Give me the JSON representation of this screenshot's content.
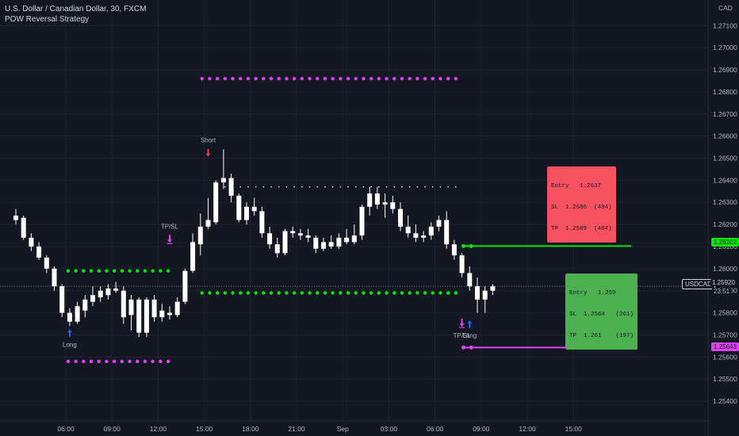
{
  "header": {
    "symbol_line": "U.S. Dollar / Canadian Dollar, 30, FXCM",
    "indicator": "POW Reversal Strategy"
  },
  "chart_data": {
    "type": "candlestick",
    "currency_label": "CAD",
    "ylim": [
      1.2535,
      1.2718
    ],
    "y_ticks": [
      "1.27100",
      "1.27000",
      "1.26900",
      "1.26800",
      "1.26700",
      "1.26600",
      "1.26500",
      "1.26400",
      "1.26300",
      "1.26200",
      "1.26100",
      "1.26000",
      "1.25900",
      "1.25800",
      "1.25700",
      "1.25600",
      "1.25500",
      "1.25400"
    ],
    "x_ticks": [
      {
        "label": "06:00",
        "bar": 6.5
      },
      {
        "label": "09:00",
        "bar": 12.5
      },
      {
        "label": "12:00",
        "bar": 18.5
      },
      {
        "label": "15:00",
        "bar": 24.5
      },
      {
        "label": "18:00",
        "bar": 30.5
      },
      {
        "label": "21:00",
        "bar": 36.5
      },
      {
        "label": "Sep",
        "bar": 42.5
      },
      {
        "label": "03:00",
        "bar": 48.5
      },
      {
        "label": "06:00",
        "bar": 54.5
      },
      {
        "label": "09:00",
        "bar": 60.5
      },
      {
        "label": "12:00",
        "bar": 66.5
      },
      {
        "label": "15:00",
        "bar": 72.5
      }
    ],
    "candles": [
      [
        1.2622,
        1.2627,
        1.262,
        1.2624
      ],
      [
        1.2623,
        1.2624,
        1.2613,
        1.2614
      ],
      [
        1.2614,
        1.2616,
        1.2608,
        1.261
      ],
      [
        1.261,
        1.2612,
        1.2604,
        1.2605
      ],
      [
        1.2605,
        1.2606,
        1.2598,
        1.26
      ],
      [
        1.26,
        1.2601,
        1.259,
        1.2592
      ],
      [
        1.2592,
        1.2593,
        1.2578,
        1.258
      ],
      [
        1.258,
        1.2582,
        1.2574,
        1.2576
      ],
      [
        1.2576,
        1.2585,
        1.2575,
        1.2583
      ],
      [
        1.2581,
        1.2588,
        1.2578,
        1.2586
      ],
      [
        1.2585,
        1.2592,
        1.2583,
        1.2588
      ],
      [
        1.2587,
        1.2592,
        1.2585,
        1.259
      ],
      [
        1.2588,
        1.2593,
        1.2586,
        1.2591
      ],
      [
        1.2591,
        1.2594,
        1.2589,
        1.259
      ],
      [
        1.259,
        1.2592,
        1.2575,
        1.2578
      ],
      [
        1.2579,
        1.2588,
        1.2572,
        1.2586
      ],
      [
        1.2586,
        1.2587,
        1.2569,
        1.2571
      ],
      [
        1.2571,
        1.2587,
        1.2569,
        1.2586
      ],
      [
        1.2586,
        1.2588,
        1.2576,
        1.2578
      ],
      [
        1.2578,
        1.2584,
        1.2576,
        1.2581
      ],
      [
        1.2579,
        1.2583,
        1.2577,
        1.258
      ],
      [
        1.2579,
        1.2587,
        1.2578,
        1.2585
      ],
      [
        1.2585,
        1.26,
        1.2584,
        1.2599
      ],
      [
        1.2599,
        1.2616,
        1.2598,
        1.2612
      ],
      [
        1.2611,
        1.2625,
        1.2606,
        1.2619
      ],
      [
        1.2619,
        1.2632,
        1.2618,
        1.2622
      ],
      [
        1.2621,
        1.264,
        1.262,
        1.2639
      ],
      [
        1.2639,
        1.2654,
        1.2636,
        1.2641
      ],
      [
        1.2641,
        1.2643,
        1.263,
        1.2633
      ],
      [
        1.2633,
        1.2634,
        1.2621,
        1.2622
      ],
      [
        1.2622,
        1.263,
        1.262,
        1.2628
      ],
      [
        1.2628,
        1.2632,
        1.2624,
        1.2626
      ],
      [
        1.2626,
        1.2628,
        1.2614,
        1.2616
      ],
      [
        1.2616,
        1.2619,
        1.2609,
        1.2611
      ],
      [
        1.2611,
        1.2614,
        1.2605,
        1.2607
      ],
      [
        1.2607,
        1.2618,
        1.2606,
        1.2617
      ],
      [
        1.2617,
        1.2619,
        1.2614,
        1.2616
      ],
      [
        1.2616,
        1.2618,
        1.2613,
        1.2615
      ],
      [
        1.2615,
        1.2618,
        1.2612,
        1.2614
      ],
      [
        1.2614,
        1.2615,
        1.2607,
        1.2609
      ],
      [
        1.2609,
        1.2614,
        1.2608,
        1.2612
      ],
      [
        1.2612,
        1.2615,
        1.2609,
        1.261
      ],
      [
        1.261,
        1.2616,
        1.2609,
        1.2614
      ],
      [
        1.2614,
        1.2618,
        1.2611,
        1.2612
      ],
      [
        1.2612,
        1.262,
        1.2611,
        1.2615
      ],
      [
        1.2615,
        1.2629,
        1.2613,
        1.2628
      ],
      [
        1.2628,
        1.2637,
        1.2624,
        1.2634
      ],
      [
        1.2634,
        1.2637,
        1.2627,
        1.2629
      ],
      [
        1.2629,
        1.2634,
        1.2623,
        1.263
      ],
      [
        1.263,
        1.2633,
        1.2625,
        1.2627
      ],
      [
        1.2627,
        1.263,
        1.2617,
        1.2619
      ],
      [
        1.2619,
        1.2624,
        1.2614,
        1.2616
      ],
      [
        1.2616,
        1.262,
        1.2612,
        1.2614
      ],
      [
        1.2614,
        1.2617,
        1.2612,
        1.2615
      ],
      [
        1.2615,
        1.2621,
        1.2613,
        1.2619
      ],
      [
        1.2619,
        1.2624,
        1.2617,
        1.2622
      ],
      [
        1.2622,
        1.2626,
        1.2609,
        1.2611
      ],
      [
        1.2611,
        1.2613,
        1.2604,
        1.2606
      ],
      [
        1.2606,
        1.2607,
        1.2596,
        1.2598
      ],
      [
        1.2598,
        1.2601,
        1.259,
        1.2592
      ],
      [
        1.2592,
        1.2596,
        1.258,
        1.2586
      ],
      [
        1.2586,
        1.2592,
        1.258,
        1.259
      ],
      [
        1.259,
        1.2593,
        1.2588,
        1.2592
      ]
    ],
    "levels": [
      {
        "name": "upper-magenta-dots",
        "price": 1.2686,
        "from": 24.2,
        "to": 57.2,
        "color": "#e040fb",
        "style": "bigdots"
      },
      {
        "name": "lower-magenta-dots",
        "price": 1.2558,
        "from": 6.8,
        "to": 20.2,
        "color": "#e040fb",
        "style": "bigdots"
      },
      {
        "name": "green-dots-left",
        "price": 1.2599,
        "from": 6.8,
        "to": 20.2,
        "color": "#00e600",
        "style": "bigdots"
      },
      {
        "name": "green-dots-right",
        "price": 1.2589,
        "from": 24.2,
        "to": 57.2,
        "color": "#00e600",
        "style": "bigdots"
      },
      {
        "name": "short-entry-dots",
        "price": 1.2637,
        "from": 27.2,
        "to": 57.2,
        "color": "#d1d4dc",
        "style": "smalldots"
      },
      {
        "name": "tp-green-line",
        "price": 1.26102,
        "from": 58.2,
        "to": 80,
        "color": "#00e600",
        "style": "line"
      },
      {
        "name": "sl-magenta-line",
        "price": 1.25643,
        "from": 58.2,
        "to": 80,
        "color": "#e040fb",
        "style": "line"
      }
    ],
    "markers": [
      {
        "name": "long-marker",
        "bar": 7,
        "label": "Long",
        "dir": "up",
        "price": 1.2574,
        "color": "#2962ff"
      },
      {
        "name": "tpsl-marker",
        "bar": 20,
        "label": "TP/SL",
        "dir": "down-bar",
        "price": 1.2616,
        "color": "#e040fb"
      },
      {
        "name": "short-marker",
        "bar": 25,
        "label": "Short",
        "dir": "down",
        "price": 1.2655,
        "color": "#f23645"
      },
      {
        "name": "tpsl-marker-2",
        "bar": 58,
        "label": "TP/SL",
        "dir": "down-bar",
        "price": 1.2578,
        "color": "#e040fb"
      },
      {
        "name": "long-marker-2",
        "bar": 59,
        "label": "Long",
        "dir": "up",
        "price": 1.2578,
        "color": "#2962ff"
      }
    ],
    "price_tags": {
      "current": {
        "label": "USDCAD",
        "value": "1.25920",
        "countdown": "23:51",
        "price": 1.2592
      },
      "tp": {
        "value": "1.26102",
        "price": 1.26102
      },
      "sl": {
        "value": "1.25643",
        "price": 1.25643
      }
    },
    "short_box": {
      "lines": [
        "Entry   1.2637",
        "SL  1.2686  (484)",
        "TP  1.2589  (484)"
      ],
      "color": "#f7525f"
    },
    "long_box": {
      "lines": [
        "Entry   1.259",
        "SL  1.2564   (261)",
        "TP  1.261    (197)"
      ],
      "color": "#4caf50"
    }
  }
}
